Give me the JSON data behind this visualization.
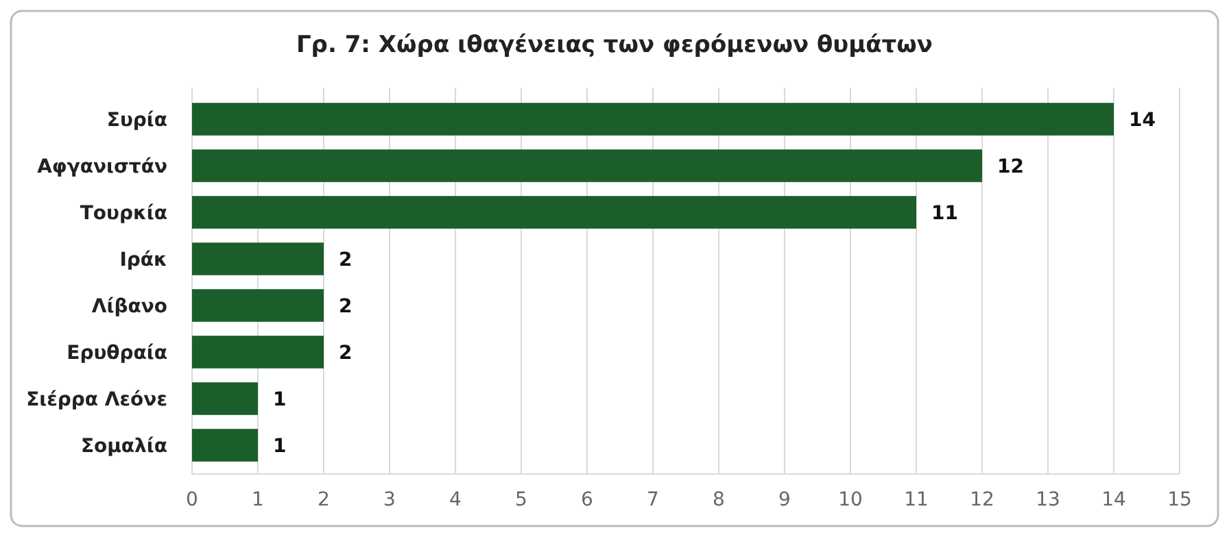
{
  "chart_data": {
    "type": "bar",
    "orientation": "horizontal",
    "title": "Γρ. 7: Χώρα ιθαγένειας των φερόμενων θυμάτων",
    "categories": [
      "Συρία",
      "Αφγανιστάν",
      "Τουρκία",
      "Ιράκ",
      "Λίβανο",
      "Ερυθραία",
      "Σιέρρα Λεόνε",
      "Σομαλία"
    ],
    "values": [
      14,
      12,
      11,
      2,
      2,
      2,
      1,
      1
    ],
    "color": "#1b5e2b",
    "xlim": [
      0,
      15
    ],
    "xticks": [
      0,
      1,
      2,
      3,
      4,
      5,
      6,
      7,
      8,
      9,
      10,
      11,
      12,
      13,
      14,
      15
    ],
    "grid": "x",
    "data_labels": true
  }
}
